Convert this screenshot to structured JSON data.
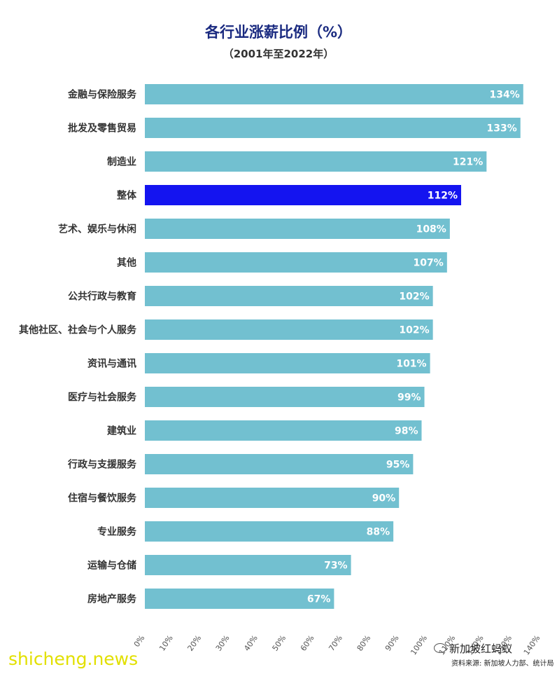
{
  "chart_data": {
    "type": "bar",
    "orientation": "horizontal",
    "title": "各行业涨薪比例（%）",
    "subtitle": "（2001年至2022年）",
    "categories": [
      "金融与保险服务",
      "批发及零售贸易",
      "制造业",
      "整体",
      "艺术、娱乐与休闲",
      "其他",
      "公共行政与教育",
      "其他社区、社会与个人服务",
      "资讯与通讯",
      "医疗与社会服务",
      "建筑业",
      "行政与支援服务",
      "住宿与餐饮服务",
      "专业服务",
      "运输与仓储",
      "房地产服务"
    ],
    "values": [
      134,
      133,
      121,
      112,
      108,
      107,
      102,
      102,
      101,
      99,
      98,
      95,
      90,
      88,
      73,
      67
    ],
    "value_labels": [
      "134%",
      "133%",
      "121%",
      "112%",
      "108%",
      "107%",
      "102%",
      "102%",
      "101%",
      "99%",
      "98%",
      "95%",
      "90%",
      "88%",
      "73%",
      "67%"
    ],
    "highlight_category": "整体",
    "xlim": [
      0,
      140
    ],
    "xticks": [
      "0%",
      "10%",
      "20%",
      "30%",
      "40%",
      "50%",
      "60%",
      "70%",
      "80%",
      "90%",
      "100%",
      "110%",
      "120%",
      "130%",
      "140%"
    ],
    "xlabel": "",
    "ylabel": "",
    "grid": false,
    "legend": "none",
    "colors": {
      "bar": "#72c0d0",
      "highlight": "#1414f0",
      "label": "#333333",
      "title": "#1a2a80"
    }
  },
  "watermark": {
    "site": "shicheng.news",
    "account": "新加坡红蚂蚁",
    "source": "资料来源: 新加坡人力部、统计局"
  }
}
